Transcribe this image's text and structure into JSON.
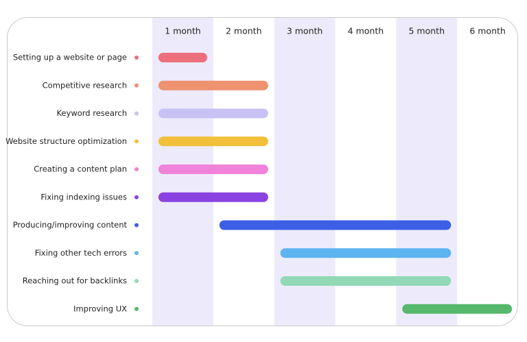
{
  "chart_data": {
    "type": "gantt",
    "columns": [
      "1 month",
      "2 month",
      "3 month",
      "4 month",
      "5 month",
      "6 month"
    ],
    "xlim": [
      0,
      6
    ],
    "categories": [
      "Setting up a website or page",
      "Competitive research",
      "Keyword research",
      "Website structure optimization",
      "Creating a content plan",
      "Fixing indexing issues",
      "Producing/improving content",
      "Fixing other tech errors",
      "Reaching out for backlinks",
      "Improving UX"
    ],
    "start": [
      0.1,
      0.1,
      0.1,
      0.1,
      0.1,
      0.1,
      1.1,
      2.1,
      2.1,
      4.1
    ],
    "end": [
      0.9,
      1.9,
      1.9,
      1.9,
      1.9,
      1.9,
      4.9,
      4.9,
      4.9,
      5.9
    ],
    "colors": [
      "#ec6f7c",
      "#ee9270",
      "#c8c2f4",
      "#f2bf3a",
      "#f082d9",
      "#8a42e0",
      "#3d5fe6",
      "#5cb4f0",
      "#92d9b6",
      "#55b86b"
    ]
  }
}
